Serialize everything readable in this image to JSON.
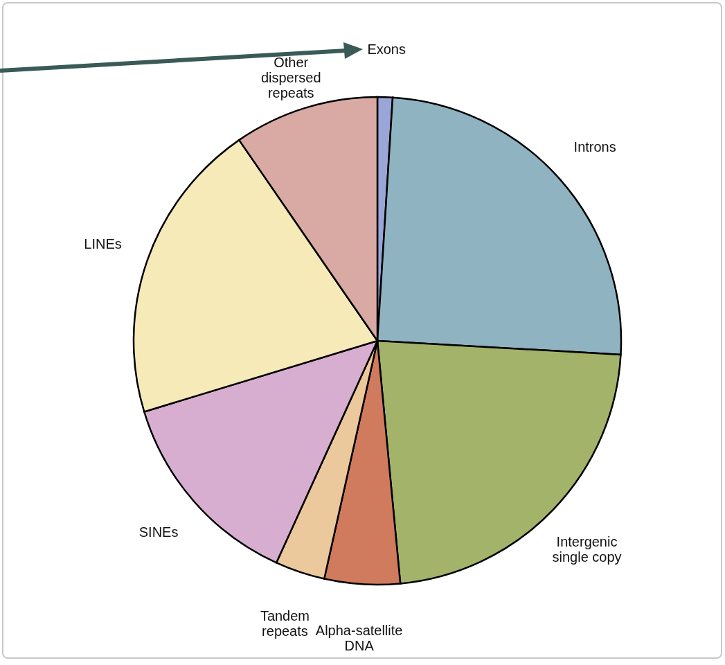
{
  "chart_data": {
    "type": "pie",
    "categories": [
      "Exons",
      "Introns",
      "Intergenic\nsingle copy",
      "Alpha-satellite\nDNA",
      "Tandem\nrepeats",
      "SINEs",
      "LINEs",
      "Other\ndispersed\nrepeats"
    ],
    "values": [
      1,
      24.9,
      22.6,
      5,
      3.3,
      13.5,
      20.1,
      9.6
    ],
    "colors": [
      "#9aa6d8",
      "#8fb3c0",
      "#a4b36a",
      "#d07a5e",
      "#ecc99c",
      "#d7aed0",
      "#f5eab8",
      "#d9a9a3"
    ]
  }
}
